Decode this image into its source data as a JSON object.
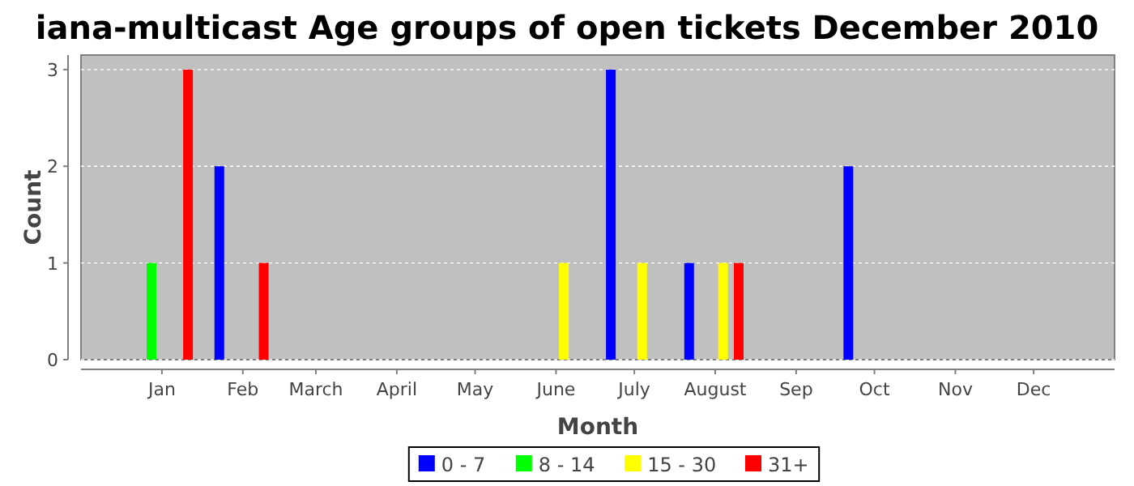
{
  "chart_data": {
    "type": "bar",
    "title": "iana-multicast Age groups of open tickets December 2010",
    "xlabel": "Month",
    "ylabel": "Count",
    "xlim": [
      "2009-12-01",
      "2011-01-01"
    ],
    "xticks": [
      {
        "value": "2010-01-01",
        "label": "Jan"
      },
      {
        "value": "2010-02-01",
        "label": "Feb"
      },
      {
        "value": "2010-03-01",
        "label": "March"
      },
      {
        "value": "2010-04-01",
        "label": "April"
      },
      {
        "value": "2010-05-01",
        "label": "May"
      },
      {
        "value": "2010-06-01",
        "label": "June"
      },
      {
        "value": "2010-07-01",
        "label": "July"
      },
      {
        "value": "2010-08-01",
        "label": "August"
      },
      {
        "value": "2010-09-01",
        "label": "Sep"
      },
      {
        "value": "2010-10-01",
        "label": "Oct"
      },
      {
        "value": "2010-11-01",
        "label": "Nov"
      },
      {
        "value": "2010-12-01",
        "label": "Dec"
      }
    ],
    "ylim": [
      0,
      3.15
    ],
    "yticks": [
      0,
      1,
      2,
      3
    ],
    "grid": "y",
    "legend": "bottom",
    "series": [
      {
        "name": "0 - 7",
        "color": "#0000ff",
        "x": [
          "2010-01-23",
          "2010-06-22",
          "2010-07-22",
          "2010-09-21"
        ],
        "values": [
          2,
          3,
          1,
          2
        ]
      },
      {
        "name": "8 - 14",
        "color": "#00ff00",
        "x": [
          "2009-12-28"
        ],
        "values": [
          1
        ]
      },
      {
        "name": "15 - 30",
        "color": "#ffff00",
        "x": [
          "2010-06-04",
          "2010-07-04",
          "2010-08-04"
        ],
        "values": [
          1,
          1,
          1
        ]
      },
      {
        "name": "31+",
        "color": "#ff0000",
        "x": [
          "2010-01-11",
          "2010-02-09",
          "2010-08-10"
        ],
        "values": [
          3,
          1,
          1
        ]
      }
    ]
  }
}
